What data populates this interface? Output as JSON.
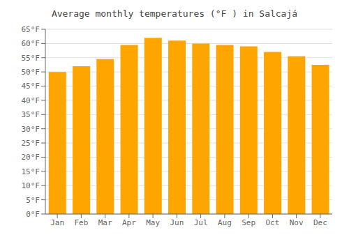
{
  "chart_data": {
    "type": "bar",
    "title": "Average monthly temperatures (°F ) in Salcajá",
    "categories": [
      "Jan",
      "Feb",
      "Mar",
      "Apr",
      "May",
      "Jun",
      "Jul",
      "Aug",
      "Sep",
      "Oct",
      "Nov",
      "Dec"
    ],
    "values": [
      50.0,
      52.0,
      54.5,
      59.5,
      62.0,
      61.0,
      60.0,
      59.5,
      59.0,
      57.0,
      55.5,
      52.5
    ],
    "color": "#FFA500",
    "ylim": [
      0,
      65
    ],
    "yticks": [
      {
        "value": 0,
        "label": "0°F"
      },
      {
        "value": 5,
        "label": "5°F"
      },
      {
        "value": 10,
        "label": "10°F"
      },
      {
        "value": 15,
        "label": "15°F"
      },
      {
        "value": 20,
        "label": "20°F"
      },
      {
        "value": 25,
        "label": "25°F"
      },
      {
        "value": 30,
        "label": "30°F"
      },
      {
        "value": 35,
        "label": "35°F"
      },
      {
        "value": 40,
        "label": "40°F"
      },
      {
        "value": 45,
        "label": "45°F"
      },
      {
        "value": 50,
        "label": "50°F"
      },
      {
        "value": 55,
        "label": "55°F"
      },
      {
        "value": 60,
        "label": "60°F"
      },
      {
        "value": 65,
        "label": "65°F"
      }
    ],
    "grid": true
  }
}
